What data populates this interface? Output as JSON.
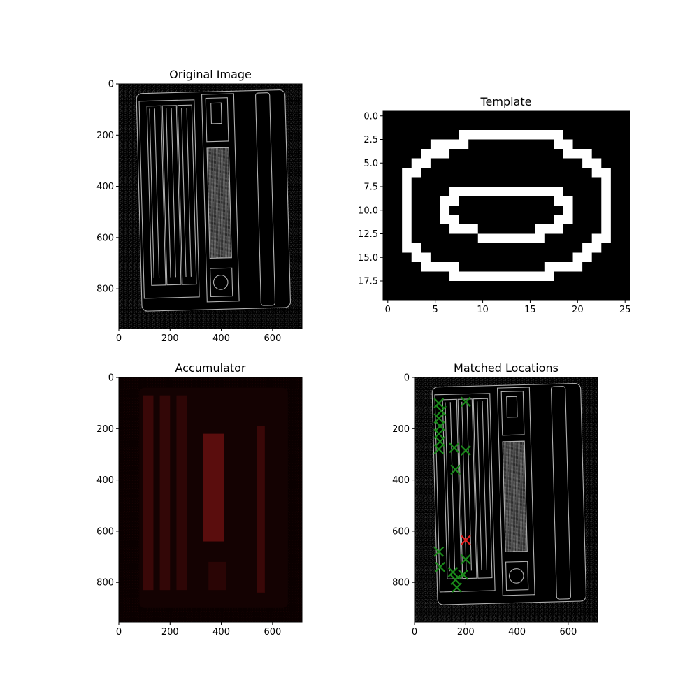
{
  "chart_data": [
    {
      "type": "image",
      "title": "Original Image",
      "xlim": [
        0,
        715
      ],
      "ylim": [
        0,
        955
      ],
      "xticks": [
        "0",
        "200",
        "400",
        "600"
      ],
      "xtick_values": [
        0,
        200,
        400,
        600
      ],
      "yticks": [
        "0",
        "200",
        "400",
        "600",
        "800"
      ],
      "ytick_values": [
        0,
        200,
        400,
        600,
        800
      ],
      "colors": {
        "background": "#000000",
        "edges": "#9a9a9a"
      }
    },
    {
      "type": "image",
      "title": "Template",
      "xlim": [
        -0.5,
        25.5
      ],
      "ylim": [
        -0.5,
        19.5
      ],
      "xticks": [
        "0",
        "5",
        "10",
        "15",
        "20",
        "25"
      ],
      "xtick_values": [
        0,
        5,
        10,
        15,
        20,
        25
      ],
      "yticks": [
        "0.0",
        "2.5",
        "5.0",
        "7.5",
        "10.0",
        "12.5",
        "15.0",
        "17.5"
      ],
      "ytick_values": [
        0,
        2.5,
        5,
        7.5,
        10,
        12.5,
        15,
        17.5
      ],
      "colors": {
        "background": "#000000",
        "foreground": "#ffffff"
      }
    },
    {
      "type": "heatmap",
      "title": "Accumulator",
      "xlim": [
        0,
        715
      ],
      "ylim": [
        0,
        955
      ],
      "xticks": [
        "0",
        "200",
        "400",
        "600"
      ],
      "xtick_values": [
        0,
        200,
        400,
        600
      ],
      "yticks": [
        "0",
        "200",
        "400",
        "600",
        "800"
      ],
      "ytick_values": [
        0,
        200,
        400,
        600,
        800
      ],
      "colors": {
        "low": "#000000",
        "high": "#7a0f0f"
      }
    },
    {
      "type": "scatter",
      "title": "Matched Locations",
      "xlim": [
        0,
        715
      ],
      "ylim": [
        0,
        955
      ],
      "xticks": [
        "0",
        "200",
        "400",
        "600"
      ],
      "xtick_values": [
        0,
        200,
        400,
        600
      ],
      "yticks": [
        "0",
        "200",
        "400",
        "600",
        "800"
      ],
      "ytick_values": [
        0,
        200,
        400,
        600,
        800
      ],
      "colors": {
        "match": "#1a8a1a",
        "best": "#e02020"
      },
      "series": [
        {
          "marker": "x",
          "color": "#1a8a1a",
          "points": [
            [
              95,
              100
            ],
            [
              105,
              130
            ],
            [
              95,
              160
            ],
            [
              100,
              190
            ],
            [
              95,
              220
            ],
            [
              100,
              250
            ],
            [
              95,
              280
            ],
            [
              155,
              275
            ],
            [
              200,
              285
            ],
            [
              160,
              360
            ],
            [
              200,
              95
            ],
            [
              95,
              680
            ],
            [
              100,
              740
            ],
            [
              150,
              760
            ],
            [
              200,
              710
            ],
            [
              160,
              790
            ],
            [
              165,
              820
            ],
            [
              190,
              770
            ]
          ]
        },
        {
          "marker": "x",
          "color": "#e02020",
          "points": [
            [
              200,
              635
            ]
          ]
        }
      ]
    }
  ]
}
